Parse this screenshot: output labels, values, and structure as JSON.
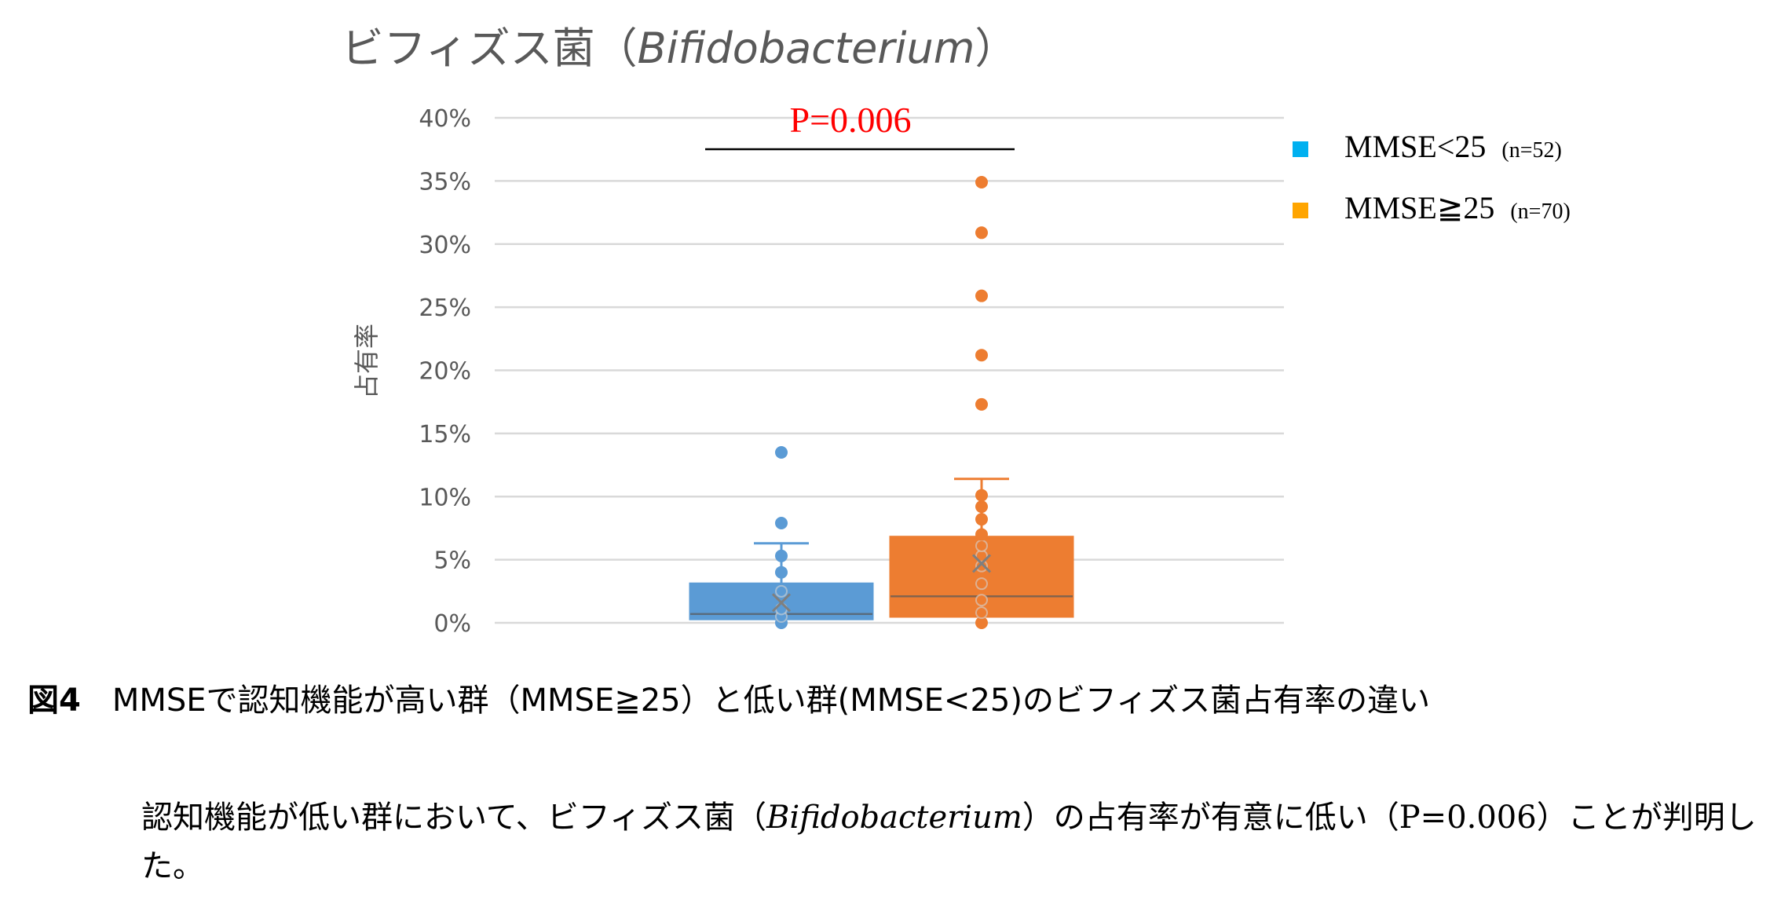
{
  "chart_data": {
    "type": "box",
    "title": {
      "prefix": "ビフィズス菌（",
      "italic": "Bifidobacterium",
      "suffix": "）"
    },
    "ylabel": "占有率",
    "ylim": [
      0,
      40
    ],
    "yticks": [
      0,
      5,
      10,
      15,
      20,
      25,
      30,
      35,
      40
    ],
    "ytick_labels": [
      "0%",
      "5%",
      "10%",
      "15%",
      "20%",
      "25%",
      "30%",
      "35%",
      "40%"
    ],
    "grid": true,
    "significance": {
      "label": "P=0.006",
      "color": "#ff0000"
    },
    "legend_position": "top-right",
    "series": [
      {
        "name": "MMSE<25",
        "n_label": "(n=52)",
        "color": "#5b9bd5",
        "legend_color": "#00b0f0",
        "whisker_low": 0,
        "q1": 0.3,
        "median": 0.7,
        "q3": 3.1,
        "whisker_high": 6.3,
        "mean": 1.6,
        "points": [
          0,
          0.5,
          1.1,
          2.5,
          4.0,
          5.3,
          7.9,
          13.5
        ]
      },
      {
        "name": "MMSE≧25",
        "n_label": "(n=70)",
        "color": "#ed7d31",
        "legend_color": "#ffa500",
        "whisker_low": 0,
        "q1": 0.5,
        "median": 2.1,
        "q3": 6.8,
        "whisker_high": 11.4,
        "mean": 4.7,
        "points": [
          0,
          0.8,
          1.8,
          3.1,
          4.5,
          5.3,
          6.1,
          7.0,
          8.2,
          9.2,
          10.1,
          17.3,
          21.2,
          25.9,
          30.9,
          34.9
        ]
      }
    ]
  },
  "caption": {
    "figure_no": "図4",
    "text": "MMSEで認知機能が高い群（MMSE≧25）と低い群(MMSE<25)のビフィズス菌占有率の違い"
  },
  "description": {
    "part1": "認知機能が低い群において、ビフィズス菌（",
    "italic": "Bifidobacterium",
    "part2": "）の占有率が有意に低い（P=0.006）ことが判明した。"
  }
}
